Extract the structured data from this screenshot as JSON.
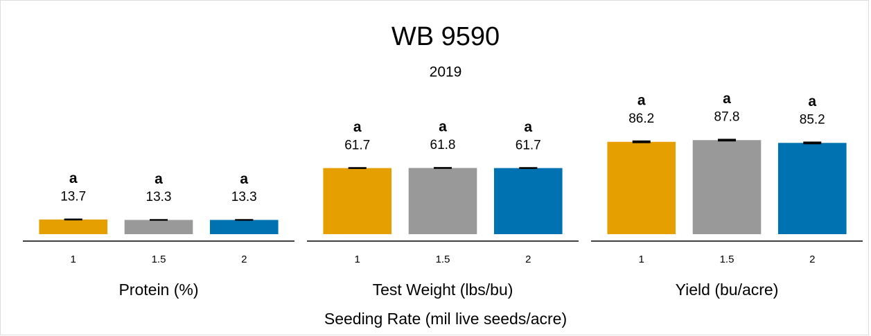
{
  "chart_data": {
    "type": "bar",
    "title": "WB 9590",
    "subtitle": "2019",
    "xlabel": "Seeding Rate (mil live seeds/acre)",
    "categories": [
      "1",
      "1.5",
      "2"
    ],
    "colors": [
      "#E69F00",
      "#999999",
      "#0072B2"
    ],
    "ylim": [
      0,
      130
    ],
    "panels": [
      {
        "label": "Protein (%)",
        "values": [
          13.7,
          13.3,
          13.3
        ],
        "errors": [
          0.2,
          0.15,
          0.15
        ],
        "letters": [
          "a",
          "a",
          "a"
        ]
      },
      {
        "label": "Test Weight (lbs/bu)",
        "values": [
          61.7,
          61.8,
          61.7
        ],
        "errors": [
          0.2,
          0.2,
          0.2
        ],
        "letters": [
          "a",
          "a",
          "a"
        ]
      },
      {
        "label": "Yield (bu/acre)",
        "values": [
          86.2,
          87.8,
          85.2
        ],
        "errors": [
          0.6,
          0.6,
          0.6
        ],
        "letters": [
          "a",
          "a",
          "a"
        ]
      }
    ]
  }
}
